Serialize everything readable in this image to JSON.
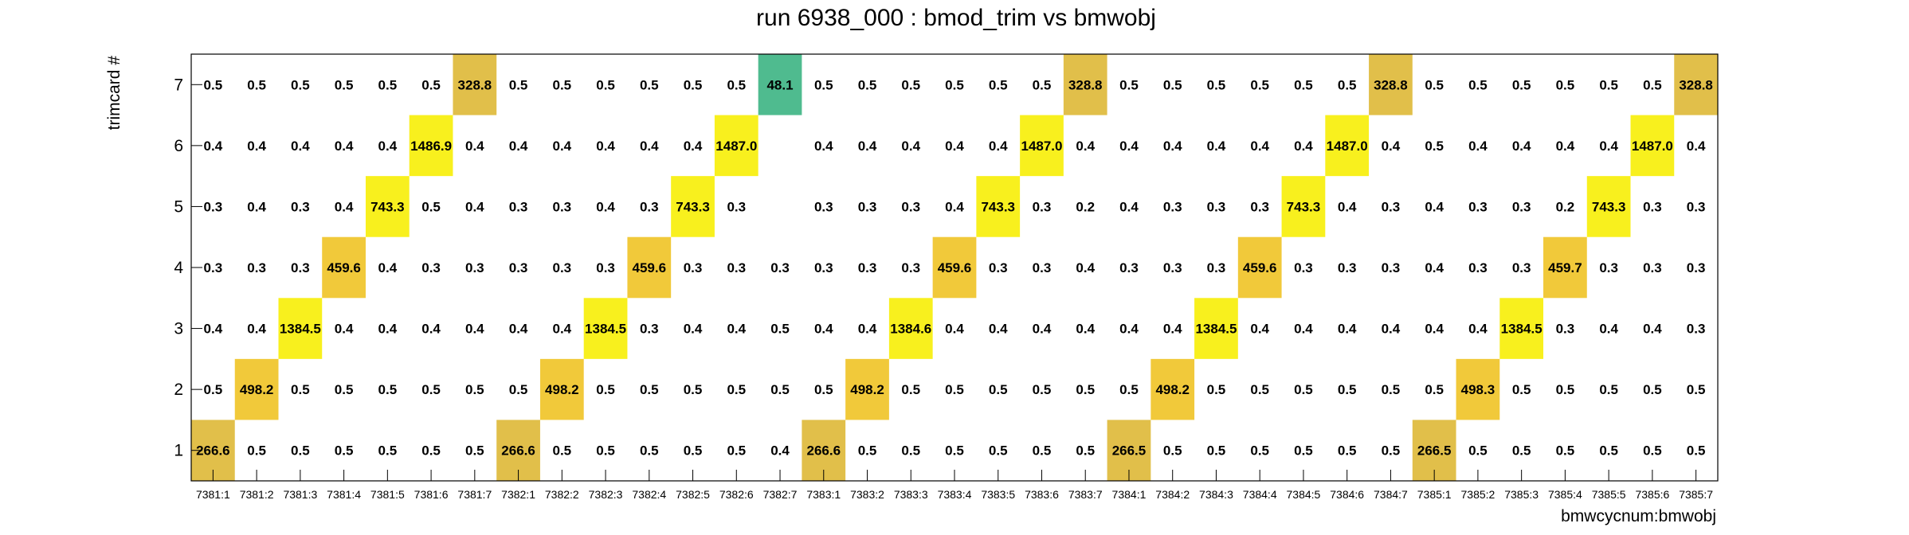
{
  "chart_data": {
    "type": "heatmap",
    "title": "run 6938_000 : bmod_trim vs bmwobj",
    "xlabel": "bmwcycnum:bmwobj",
    "ylabel": "trimcard #",
    "categories": [
      "7381:1",
      "7381:2",
      "7381:3",
      "7381:4",
      "7381:5",
      "7381:6",
      "7381:7",
      "7382:1",
      "7382:2",
      "7382:3",
      "7382:4",
      "7382:5",
      "7382:6",
      "7382:7",
      "7383:1",
      "7383:2",
      "7383:3",
      "7383:4",
      "7383:5",
      "7383:6",
      "7383:7",
      "7384:1",
      "7384:2",
      "7384:3",
      "7384:4",
      "7384:5",
      "7384:6",
      "7384:7",
      "7385:1",
      "7385:2",
      "7385:3",
      "7385:4",
      "7385:5",
      "7385:6",
      "7385:7"
    ],
    "y_categories": [
      "1",
      "2",
      "3",
      "4",
      "5",
      "6",
      "7"
    ],
    "rows": [
      {
        "y": "7",
        "values": [
          0.5,
          0.5,
          0.5,
          0.5,
          0.5,
          0.5,
          328.8,
          0.5,
          0.5,
          0.5,
          0.5,
          0.5,
          0.5,
          48.1,
          0.5,
          0.5,
          0.5,
          0.5,
          0.5,
          0.5,
          328.8,
          0.5,
          0.5,
          0.5,
          0.5,
          0.5,
          0.5,
          328.8,
          0.5,
          0.5,
          0.5,
          0.5,
          0.5,
          0.5,
          328.8
        ]
      },
      {
        "y": "6",
        "values": [
          0.4,
          0.4,
          0.4,
          0.4,
          0.4,
          1486.9,
          0.4,
          0.4,
          0.4,
          0.4,
          0.4,
          0.4,
          1487.0,
          null,
          0.4,
          0.4,
          0.4,
          0.4,
          0.4,
          1487.0,
          0.4,
          0.4,
          0.4,
          0.4,
          0.4,
          0.4,
          1487.0,
          0.4,
          0.5,
          0.4,
          0.4,
          0.4,
          0.4,
          1487.0,
          0.4
        ]
      },
      {
        "y": "5",
        "values": [
          0.3,
          0.4,
          0.3,
          0.4,
          743.3,
          0.5,
          0.4,
          0.3,
          0.3,
          0.4,
          0.3,
          743.3,
          0.3,
          null,
          0.3,
          0.3,
          0.3,
          0.4,
          743.3,
          0.3,
          0.2,
          0.4,
          0.3,
          0.3,
          0.3,
          743.3,
          0.4,
          0.3,
          0.4,
          0.3,
          0.3,
          0.2,
          743.3,
          0.3,
          0.3
        ]
      },
      {
        "y": "4",
        "values": [
          0.3,
          0.3,
          0.3,
          459.6,
          0.4,
          0.3,
          0.3,
          0.3,
          0.3,
          0.3,
          459.6,
          0.3,
          0.3,
          0.3,
          0.3,
          0.3,
          0.3,
          459.6,
          0.3,
          0.3,
          0.4,
          0.3,
          0.3,
          0.3,
          459.6,
          0.3,
          0.3,
          0.3,
          0.4,
          0.3,
          0.3,
          459.7,
          0.3,
          0.3,
          0.3
        ]
      },
      {
        "y": "3",
        "values": [
          0.4,
          0.4,
          1384.5,
          0.4,
          0.4,
          0.4,
          0.4,
          0.4,
          0.4,
          1384.5,
          0.3,
          0.4,
          0.4,
          0.5,
          0.4,
          0.4,
          1384.6,
          0.4,
          0.4,
          0.4,
          0.4,
          0.4,
          0.4,
          1384.5,
          0.4,
          0.4,
          0.4,
          0.4,
          0.4,
          0.4,
          1384.5,
          0.3,
          0.4,
          0.4,
          0.3
        ]
      },
      {
        "y": "2",
        "values": [
          0.5,
          498.2,
          0.5,
          0.5,
          0.5,
          0.5,
          0.5,
          0.5,
          498.2,
          0.5,
          0.5,
          0.5,
          0.5,
          0.5,
          0.5,
          498.2,
          0.5,
          0.5,
          0.5,
          0.5,
          0.5,
          0.5,
          498.2,
          0.5,
          0.5,
          0.5,
          0.5,
          0.5,
          0.5,
          498.3,
          0.5,
          0.5,
          0.5,
          0.5,
          0.5
        ]
      },
      {
        "y": "1",
        "values": [
          266.6,
          0.5,
          0.5,
          0.5,
          0.5,
          0.5,
          0.5,
          266.6,
          0.5,
          0.5,
          0.5,
          0.5,
          0.5,
          0.4,
          266.6,
          0.5,
          0.5,
          0.5,
          0.5,
          0.5,
          0.5,
          266.5,
          0.5,
          0.5,
          0.5,
          0.5,
          0.5,
          0.5,
          266.5,
          0.5,
          0.5,
          0.5,
          0.5,
          0.5,
          0.5
        ]
      }
    ],
    "colors": {
      "high": "#f8f01e",
      "upper_mid": "#f1c93a",
      "mid": "#e1bf4a",
      "low": "#4fbb8f",
      "frame": "#000000"
    },
    "grid": false
  }
}
